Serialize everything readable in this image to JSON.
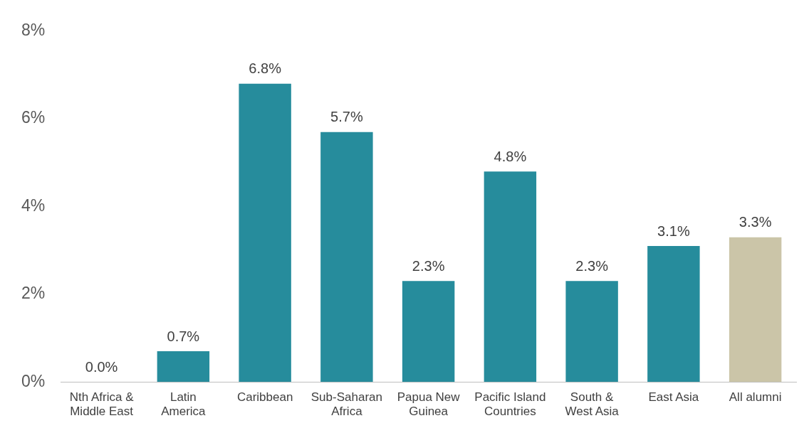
{
  "chart_data": {
    "type": "bar",
    "categories": [
      "Nth Africa &\nMiddle East",
      "Latin\nAmerica",
      "Caribbean",
      "Sub-Saharan\nAfrica",
      "Papua New\nGuinea",
      "Pacific Island\nCountries",
      "South &\nWest Asia",
      "East Asia",
      "All alumni"
    ],
    "values": [
      0,
      0.7,
      6.8,
      5.7,
      2.3,
      4.8,
      2.3,
      3.1,
      3.3
    ],
    "colors": [
      "#268c9c",
      "#268c9c",
      "#268c9c",
      "#268c9c",
      "#268c9c",
      "#268c9c",
      "#268c9c",
      "#268c9c",
      "#cbc5a8"
    ],
    "value_labels": [
      "0.0%",
      "0.7%",
      "6.8%",
      "5.7%",
      "2.3%",
      "4.8%",
      "2.3%",
      "3.1%",
      "3.3%"
    ],
    "ylim": [
      0,
      8
    ],
    "yticks": [
      {
        "value": 0,
        "label": "0%"
      },
      {
        "value": 2,
        "label": "2%"
      },
      {
        "value": 4,
        "label": "4%"
      },
      {
        "value": 6,
        "label": "6%"
      },
      {
        "value": 8,
        "label": "8%"
      }
    ],
    "grid": false,
    "legend": false
  }
}
